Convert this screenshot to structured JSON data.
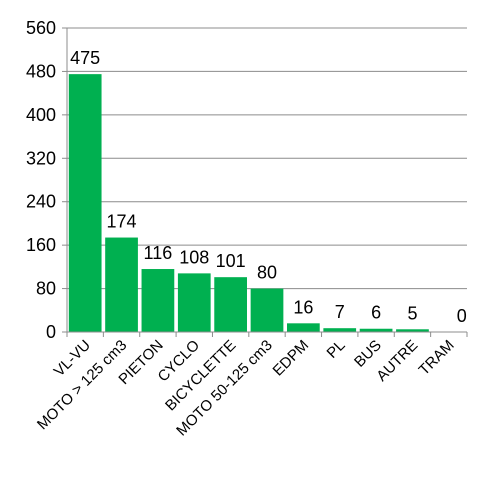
{
  "chart_data": {
    "type": "bar",
    "title": "",
    "xlabel": "",
    "ylabel": "",
    "categories": [
      "VL-VU",
      "MOTO > 125 cm3",
      "PIETON",
      "CYCLO",
      "BICYCLETTE",
      "MOTO 50-125 cm3",
      "EDPM",
      "PL",
      "BUS",
      "AUTRE",
      "TRAM"
    ],
    "values": [
      475,
      174,
      116,
      108,
      101,
      80,
      16,
      7,
      6,
      5,
      0
    ],
    "data_labels": [
      "475",
      "174",
      "116",
      "108",
      "101",
      "80",
      "16",
      "7",
      "6",
      "5",
      "0"
    ],
    "ylim": [
      0,
      560
    ],
    "yticks": [
      0,
      80,
      160,
      240,
      320,
      400,
      480,
      560
    ],
    "ytick_labels": [
      "0",
      "80",
      "160",
      "240",
      "320",
      "400",
      "480",
      "560"
    ],
    "grid": true,
    "legend": "none",
    "bar_color": "#00b050",
    "grid_color": "#8c8c8c"
  }
}
